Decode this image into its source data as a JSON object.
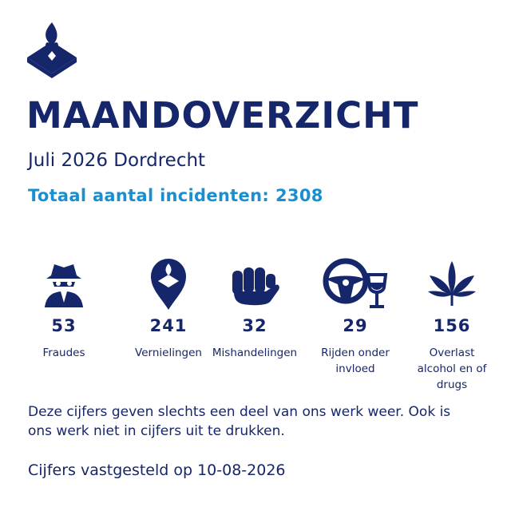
{
  "header": {
    "title": "MAANDOVERZICHT",
    "subtitle": "Juli 2026 Dordrecht",
    "total_label": "Totaal aantal incidenten:",
    "total": 2308
  },
  "stats": [
    {
      "value": 53,
      "label": "Fraudes"
    },
    {
      "value": 241,
      "label": "Vernielingen"
    },
    {
      "value": 32,
      "label": "Mishandelingen"
    },
    {
      "value": 29,
      "label": "Rijden onder invloed"
    },
    {
      "value": 156,
      "label": "Overlast alcohol en of drugs"
    }
  ],
  "note": "Deze cijfers geven slechts een deel van ons werk weer. Ook is ons werk niet in cijfers uit te drukken.",
  "footer": "Cijfers vastgesteld op 10-08-2026"
}
